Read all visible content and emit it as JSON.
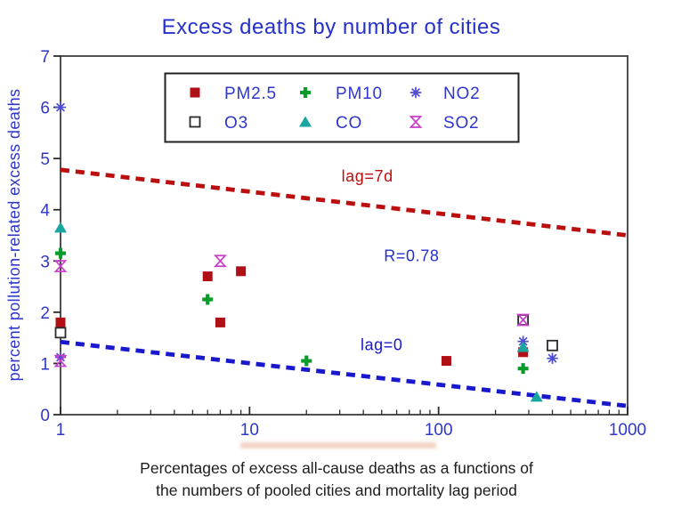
{
  "title": "Excess deaths by number of cities",
  "caption": {
    "line1": "Percentages of excess all-cause deaths as a functions of",
    "line2": "the numbers of pooled cities and mortality lag period"
  },
  "colors": {
    "title_blue": "#2430c9",
    "tick_blue": "#2e36cc",
    "legend_text_blue": "#2e36cc",
    "axis_box": "#3c3c3c",
    "pm25_red": "#b01015",
    "pm10_green": "#0a9b2a",
    "no2_blue": "#4c4cd4",
    "o3_border": "#2b2b2b",
    "co_teal": "#19a6a0",
    "so2_magenta": "#c83cc8",
    "lag7d_line_red": "#bb0f0f",
    "lag0_line_blue": "#1818cc"
  },
  "chart_data": {
    "type": "scatter",
    "title": "Excess deaths by number of cities",
    "xlabel": "",
    "ylabel": "percent pollution-related excess deaths",
    "x_scale": "log",
    "xlim": [
      1,
      1000
    ],
    "ylim": [
      0,
      7
    ],
    "x_ticks": [
      1,
      10,
      100,
      1000
    ],
    "x_minor_ticks": [
      2,
      3,
      4,
      5,
      6,
      7,
      8,
      9,
      20,
      30,
      40,
      50,
      60,
      70,
      80,
      90,
      200,
      300,
      400,
      500,
      600,
      700,
      800,
      900
    ],
    "y_ticks": [
      0,
      1,
      2,
      3,
      4,
      5,
      6,
      7
    ],
    "grid": false,
    "legend_position": "top-center-inside",
    "series": [
      {
        "name": "PM2.5",
        "marker": "filled-square",
        "color": "#b01015",
        "points": [
          [
            1,
            1.8
          ],
          [
            6,
            2.7
          ],
          [
            7,
            1.8
          ],
          [
            9,
            2.8
          ],
          [
            110,
            1.05
          ],
          [
            280,
            1.22
          ]
        ]
      },
      {
        "name": "PM10",
        "marker": "plus",
        "color": "#0a9b2a",
        "points": [
          [
            1,
            3.15
          ],
          [
            6,
            2.25
          ],
          [
            20,
            1.05
          ],
          [
            280,
            0.9
          ]
        ]
      },
      {
        "name": "NO2",
        "marker": "asterisk",
        "color": "#4c4cd4",
        "points": [
          [
            1,
            6.0
          ],
          [
            1,
            1.12
          ],
          [
            280,
            1.43
          ],
          [
            400,
            1.1
          ]
        ]
      },
      {
        "name": "O3",
        "marker": "open-square",
        "color": "#2b2b2b",
        "points": [
          [
            1,
            1.6
          ],
          [
            280,
            1.85
          ],
          [
            400,
            1.35
          ]
        ]
      },
      {
        "name": "CO",
        "marker": "filled-triangle",
        "color": "#19a6a0",
        "points": [
          [
            1,
            3.65
          ],
          [
            280,
            1.32
          ],
          [
            330,
            0.35
          ]
        ]
      },
      {
        "name": "SO2",
        "marker": "hourglass",
        "color": "#c83cc8",
        "points": [
          [
            1,
            2.9
          ],
          [
            1,
            1.05
          ],
          [
            7,
            3.0
          ],
          [
            280,
            1.85
          ]
        ]
      }
    ],
    "trend_lines": [
      {
        "label": "lag=7d",
        "color": "#bb0f0f",
        "style": "dashed",
        "from": [
          1,
          4.78
        ],
        "to": [
          1000,
          3.5
        ],
        "label_pos": [
          42,
          4.55
        ]
      },
      {
        "label": "lag=0",
        "color": "#1818cc",
        "style": "dashed",
        "from": [
          1,
          1.42
        ],
        "to": [
          1000,
          0.17
        ],
        "label_pos": [
          50,
          1.26
        ]
      }
    ],
    "annotations": [
      {
        "text": "R=0.78",
        "color": "#2430c9",
        "pos": [
          72,
          3.0
        ]
      }
    ]
  }
}
